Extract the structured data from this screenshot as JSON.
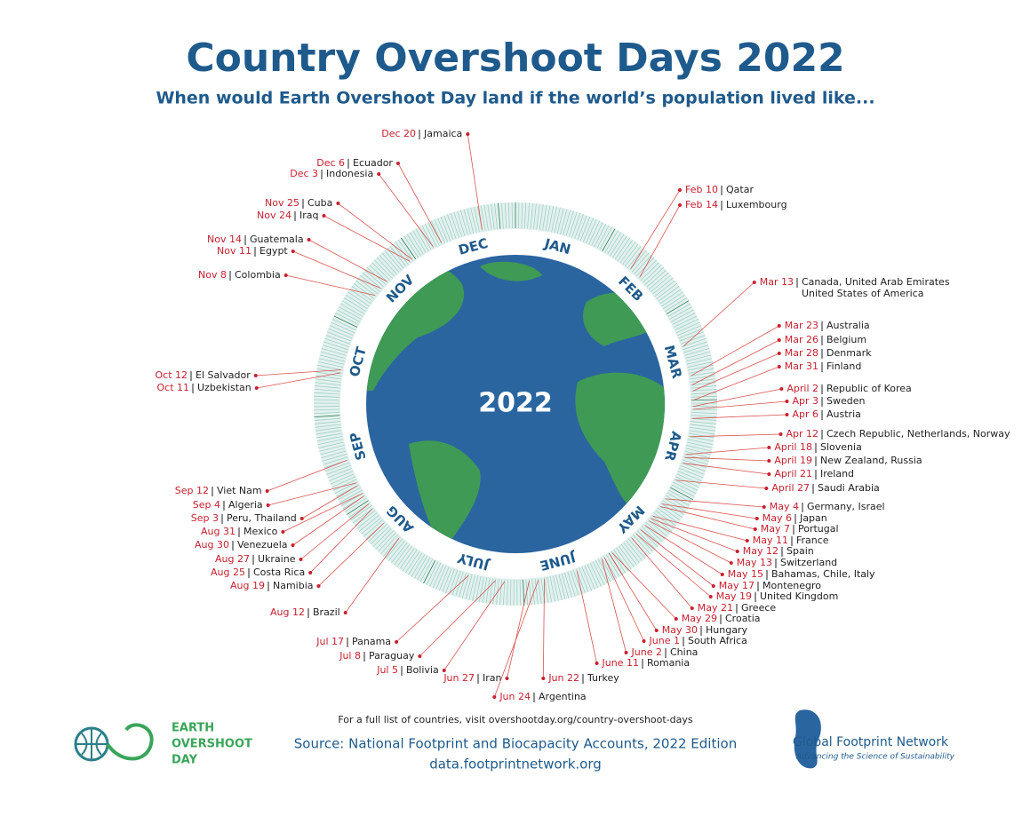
{
  "header": {
    "title": "Country Overshoot Days 2022",
    "subtitle": "When would Earth Overshoot Day land if the world’s population lived like..."
  },
  "ring": {
    "months": [
      "JAN",
      "FEB",
      "MAR",
      "APR",
      "MAY",
      "JUNE",
      "JULY",
      "AUG",
      "SEP",
      "OCT",
      "NOV",
      "DEC"
    ],
    "center_label": "2022"
  },
  "entries": [
    {
      "date": "Dec 20",
      "country": "Jamaica"
    },
    {
      "date": "Dec 6",
      "country": "Ecuador"
    },
    {
      "date": "Dec 3",
      "country": "Indonesia"
    },
    {
      "date": "Nov 25",
      "country": "Cuba"
    },
    {
      "date": "Nov 24",
      "country": "Iraq"
    },
    {
      "date": "Nov 14",
      "country": "Guatemala"
    },
    {
      "date": "Nov 11",
      "country": "Egypt"
    },
    {
      "date": "Nov 8",
      "country": "Colombia"
    },
    {
      "date": "Oct 12",
      "country": "El Salvador"
    },
    {
      "date": "Oct 11",
      "country": "Uzbekistan"
    },
    {
      "date": "Sep 12",
      "country": "Viet Nam"
    },
    {
      "date": "Sep 4",
      "country": "Algeria"
    },
    {
      "date": "Sep 3",
      "country": "Peru, Thailand"
    },
    {
      "date": "Aug 31",
      "country": "Mexico"
    },
    {
      "date": "Aug 30",
      "country": "Venezuela"
    },
    {
      "date": "Aug 27",
      "country": "Ukraine"
    },
    {
      "date": "Aug 25",
      "country": "Costa Rica"
    },
    {
      "date": "Aug 19",
      "country": "Namibia"
    },
    {
      "date": "Aug 12",
      "country": "Brazil"
    },
    {
      "date": "Jul 17",
      "country": "Panama"
    },
    {
      "date": "Jul 8",
      "country": "Paraguay"
    },
    {
      "date": "Jul 5",
      "country": "Bolivia"
    },
    {
      "date": "Jun 27",
      "country": "Iran"
    },
    {
      "date": "Jun 24",
      "country": "Argentina"
    },
    {
      "date": "Jun 22",
      "country": "Turkey"
    },
    {
      "date": "June 11",
      "country": "Romania"
    },
    {
      "date": "June 2",
      "country": "China"
    },
    {
      "date": "June 1",
      "country": "South Africa"
    },
    {
      "date": "May 30",
      "country": "Hungary"
    },
    {
      "date": "May 29",
      "country": "Croatia"
    },
    {
      "date": "May 21",
      "country": "Greece"
    },
    {
      "date": "May 19",
      "country": "United Kingdom"
    },
    {
      "date": "May 17",
      "country": "Montenegro"
    },
    {
      "date": "May 15",
      "country": "Bahamas, Chile, Italy"
    },
    {
      "date": "May 13",
      "country": "Switzerland"
    },
    {
      "date": "May 12",
      "country": "Spain"
    },
    {
      "date": "May 11",
      "country": "France"
    },
    {
      "date": "May 7",
      "country": "Portugal"
    },
    {
      "date": "May 6",
      "country": "Japan"
    },
    {
      "date": "May 4",
      "country": "Germany, Israel"
    },
    {
      "date": "April 27",
      "country": "Saudi Arabia"
    },
    {
      "date": "April 21",
      "country": "Ireland"
    },
    {
      "date": "April 19",
      "country": "New Zealand, Russia"
    },
    {
      "date": "April 18",
      "country": "Slovenia"
    },
    {
      "date": "Apr 12",
      "country": "Czech Republic, Netherlands, Norway"
    },
    {
      "date": "Apr 6",
      "country": "Austria"
    },
    {
      "date": "Apr 3",
      "country": "Sweden"
    },
    {
      "date": "April 2",
      "country": "Republic of Korea"
    },
    {
      "date": "Mar 31",
      "country": "Finland"
    },
    {
      "date": "Mar 28",
      "country": "Denmark"
    },
    {
      "date": "Mar 26",
      "country": "Belgium"
    },
    {
      "date": "Mar 23",
      "country": "Australia"
    },
    {
      "date": "Mar 13",
      "country": "Canada, United Arab Emirates",
      "country_cont": "United States of America"
    },
    {
      "date": "Feb 14",
      "country": "Luxembourg"
    },
    {
      "date": "Feb 10",
      "country": "Qatar"
    }
  ],
  "footer": {
    "note": "For a full list of countries, visit overshootday.org/country-overshoot-days",
    "source": "Source: National Footprint and Biocapacity Accounts, 2022 Edition",
    "url": "data.footprintnetwork.org"
  },
  "logos": {
    "eod": [
      "EARTH",
      "OVERSHOOT",
      "DAY"
    ],
    "gfn_name": "Global Footprint Network",
    "gfn_tagline": "Advancing the Science of Sustainability"
  }
}
